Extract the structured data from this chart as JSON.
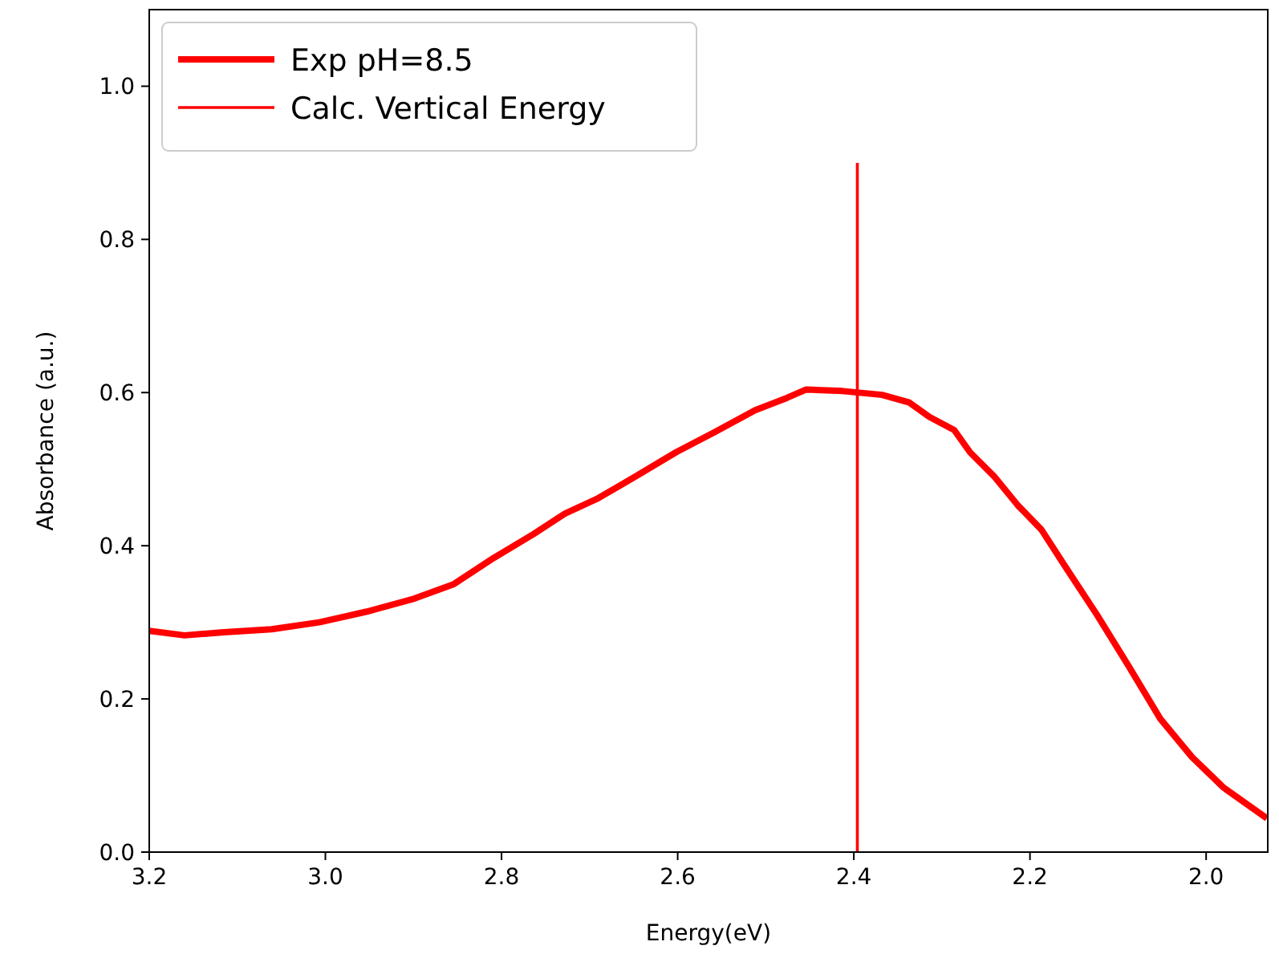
{
  "chart_data": {
    "type": "line",
    "xlabel": "Energy(eV)",
    "ylabel": "Absorbance (a.u.)",
    "xlim": [
      3.2,
      1.93
    ],
    "ylim": [
      0,
      1.1
    ],
    "xticks": [
      3.2,
      {
        "value": 3,
        "label": "3.0"
      },
      2.8,
      2.6,
      2.4,
      2.2,
      {
        "value": 2,
        "label": "2.0"
      }
    ],
    "yticks": [
      {
        "value": 0,
        "label": "0.0"
      },
      0.2,
      0.4,
      0.6,
      0.8,
      {
        "value": 1,
        "label": "1.0"
      }
    ],
    "legend": "top left",
    "grid": false,
    "line_style": "solid",
    "series": [
      {
        "name": "Exp pH=8.5",
        "color": "#ff0000",
        "x": [
          3.2,
          3.16,
          3.115,
          3.061,
          3.007,
          2.953,
          2.899,
          2.854,
          2.809,
          2.764,
          2.728,
          2.692,
          2.647,
          2.602,
          2.557,
          2.512,
          2.476,
          2.454,
          2.413,
          2.368,
          2.337,
          2.314,
          2.286,
          2.268,
          2.241,
          2.214,
          2.187,
          2.16,
          2.124,
          2.088,
          2.052,
          2.016,
          1.98,
          1.931
        ],
        "values": [
          0.289,
          0.283,
          0.287,
          0.291,
          0.3,
          0.314,
          0.331,
          0.35,
          0.384,
          0.415,
          0.442,
          0.461,
          0.491,
          0.522,
          0.549,
          0.577,
          0.593,
          0.604,
          0.602,
          0.597,
          0.587,
          0.568,
          0.551,
          0.522,
          0.491,
          0.453,
          0.421,
          0.373,
          0.31,
          0.243,
          0.174,
          0.124,
          0.084,
          0.044
        ]
      },
      {
        "name": "Calc. Vertical Energy",
        "color": "#ff0000",
        "x": [
          2.396,
          2.396
        ],
        "values": [
          0,
          0.9
        ]
      }
    ]
  }
}
